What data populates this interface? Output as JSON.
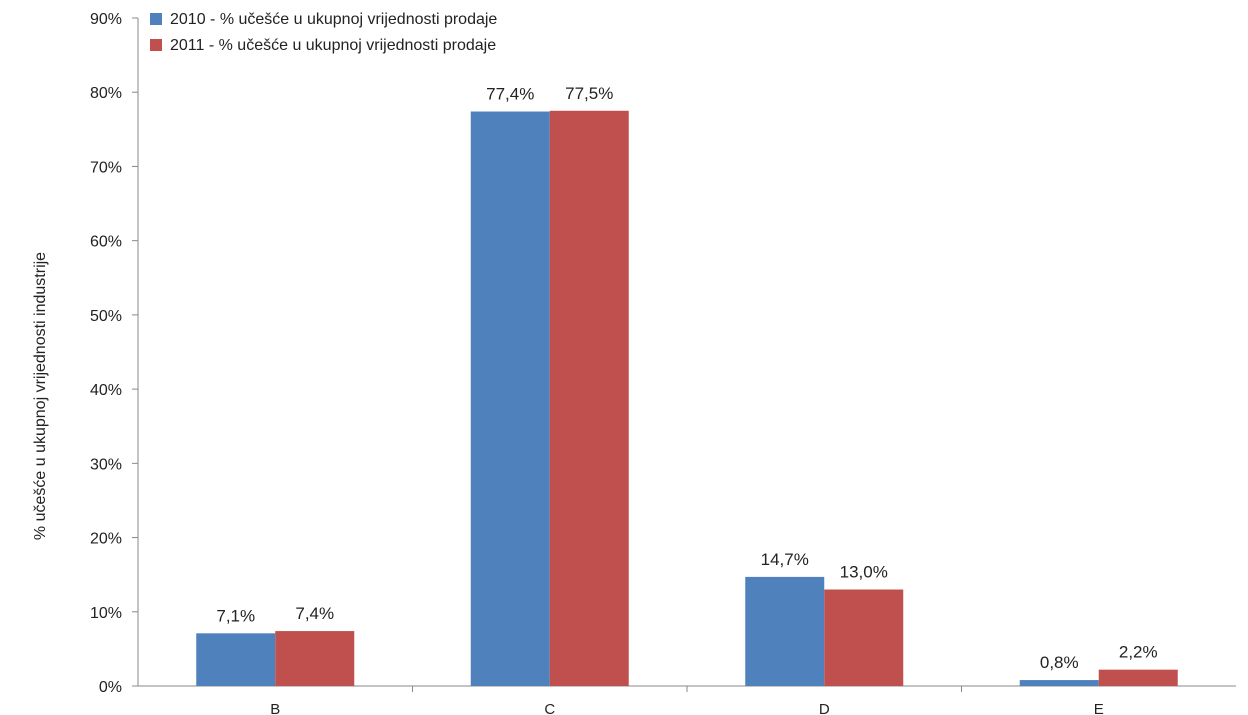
{
  "chart_data": {
    "type": "bar",
    "categories": [
      "B",
      "C",
      "D",
      "E"
    ],
    "series": [
      {
        "name": "2010 - % učešće u ukupnoj vrijednosti prodaje",
        "color": "#4F81BD",
        "values": [
          7.1,
          77.4,
          14.7,
          0.8
        ],
        "labels": [
          "7,1%",
          "77,4%",
          "14,7%",
          "0,8%"
        ]
      },
      {
        "name": "2011 - % učešće u ukupnoj vrijednosti prodaje",
        "color": "#C0504D",
        "values": [
          7.4,
          77.5,
          13.0,
          2.2
        ],
        "labels": [
          "7,4%",
          "77,5%",
          "13,0%",
          "2,2%"
        ]
      }
    ],
    "ylabel": "% učešće u ukupnoj  vrijednosti industrije",
    "xlabel": "",
    "ylim": [
      0,
      90
    ],
    "yticks": [
      0,
      10,
      20,
      30,
      40,
      50,
      60,
      70,
      80,
      90
    ],
    "ytick_labels": [
      "0%",
      "10%",
      "20%",
      "30%",
      "40%",
      "50%",
      "60%",
      "70%",
      "80%",
      "90%"
    ],
    "grid": false,
    "legend_position": "top-left"
  }
}
